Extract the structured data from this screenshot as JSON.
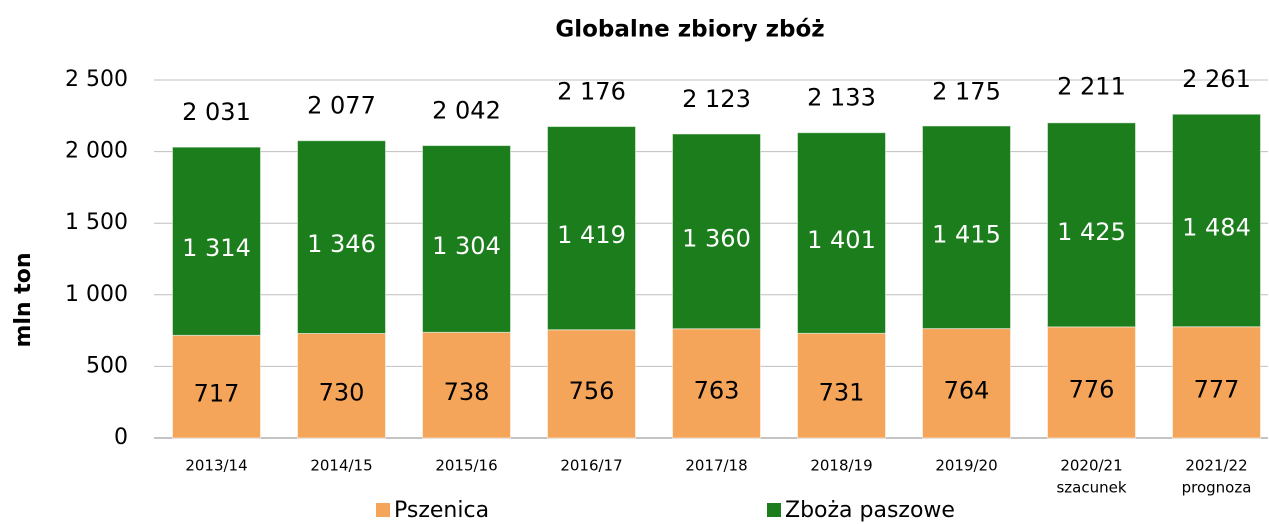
{
  "chart_data": {
    "type": "stacked_bar",
    "title": "Globalne zbiory zbóż",
    "y_label": "mln ton",
    "categories": [
      "2013/14",
      "2014/15",
      "2015/16",
      "2016/17",
      "2017/18",
      "2018/19",
      "2019/20",
      "2020/21",
      "2021/22"
    ],
    "category_notes": [
      null,
      null,
      null,
      null,
      null,
      null,
      null,
      "szacunek",
      "prognoza"
    ],
    "series": [
      {
        "name": "Pszenica",
        "color": "#f5a55a",
        "label_color": "#000000",
        "values": [
          717,
          730,
          738,
          756,
          763,
          731,
          764,
          776,
          777
        ]
      },
      {
        "name": "Zboża paszowe",
        "color": "#1b7d1b",
        "label_color": "#ffffff",
        "values": [
          1314,
          1346,
          1304,
          1419,
          1360,
          1401,
          1415,
          1425,
          1484
        ],
        "value_labels": [
          "1 314",
          "1 346",
          "1 304",
          "1 419",
          "1 360",
          "1 401",
          "1 415",
          "1 425",
          "1 484"
        ]
      }
    ],
    "totals": [
      2031,
      2077,
      2042,
      2176,
      2123,
      2133,
      2175,
      2211,
      2261
    ],
    "total_labels": [
      "2 031",
      "2 077",
      "2 042",
      "2 176",
      "2 123",
      "2 133",
      "2 175",
      "2 211",
      "2 261"
    ],
    "ylim": [
      0,
      2500
    ],
    "yticks": [
      0,
      500,
      {
        "value": 1000,
        "label": "1 000"
      },
      {
        "value": 1500,
        "label": "1 500"
      },
      {
        "value": 2000,
        "label": "2 000"
      },
      {
        "value": 2500,
        "label": "2 500"
      }
    ],
    "grid": true,
    "legend": "bottom"
  }
}
